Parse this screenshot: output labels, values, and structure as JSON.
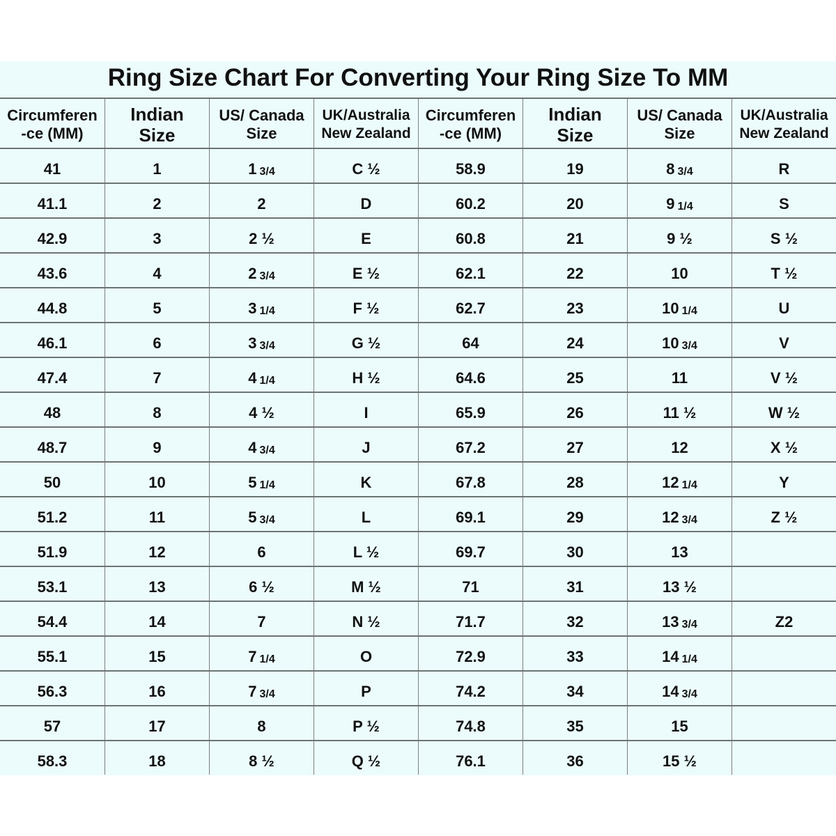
{
  "title": "Ring Size Chart For Converting Your Ring Size To MM",
  "headers": [
    [
      "Circumferen",
      "-ce   (MM)"
    ],
    [
      "Indian",
      "Size"
    ],
    [
      "US/ Canada",
      "Size"
    ],
    [
      "UK/Australia",
      "New Zealand"
    ],
    [
      "Circumferen",
      "-ce   (MM)"
    ],
    [
      "Indian",
      "Size"
    ],
    [
      "US/ Canada",
      "Size"
    ],
    [
      "UK/Australia",
      "New Zealand"
    ]
  ],
  "rows": [
    [
      "41",
      "1",
      "1 3/4",
      "C ½",
      "58.9",
      "19",
      "8 3/4",
      "R"
    ],
    [
      "41.1",
      "2",
      "2",
      "D",
      "60.2",
      "20",
      "9 1/4",
      "S"
    ],
    [
      "42.9",
      "3",
      "2 ½",
      "E",
      "60.8",
      "21",
      "9 ½",
      "S ½"
    ],
    [
      "43.6",
      "4",
      "2 3/4",
      "E ½",
      "62.1",
      "22",
      "10",
      "T ½"
    ],
    [
      "44.8",
      "5",
      "3 1/4",
      "F ½",
      "62.7",
      "23",
      "10 1/4",
      "U"
    ],
    [
      "46.1",
      "6",
      "3 3/4",
      "G ½",
      "64",
      "24",
      "10 3/4",
      "V"
    ],
    [
      "47.4",
      "7",
      "4 1/4",
      "H ½",
      "64.6",
      "25",
      "11",
      "V ½"
    ],
    [
      "48",
      "8",
      "4 ½",
      "I",
      "65.9",
      "26",
      "11 ½",
      "W ½"
    ],
    [
      "48.7",
      "9",
      "4 3/4",
      "J",
      "67.2",
      "27",
      "12",
      "X ½"
    ],
    [
      "50",
      "10",
      "5 1/4",
      "K",
      "67.8",
      "28",
      "12 1/4",
      "Y"
    ],
    [
      "51.2",
      "11",
      "5 3/4",
      "L",
      "69.1",
      "29",
      "12 3/4",
      "Z ½"
    ],
    [
      "51.9",
      "12",
      "6",
      "L ½",
      "69.7",
      "30",
      "13",
      ""
    ],
    [
      "53.1",
      "13",
      "6 ½",
      "M ½",
      "71",
      "31",
      "13 ½",
      ""
    ],
    [
      "54.4",
      "14",
      "7",
      "N ½",
      "71.7",
      "32",
      "13 3/4",
      "Z2"
    ],
    [
      "55.1",
      "15",
      "7 1/4",
      "O",
      "72.9",
      "33",
      "14 1/4",
      ""
    ],
    [
      "56.3",
      "16",
      "7 3/4",
      "P",
      "74.2",
      "34",
      "14 3/4",
      ""
    ],
    [
      "57",
      "17",
      "8",
      "P ½",
      "74.8",
      "35",
      "15",
      ""
    ],
    [
      "58.3",
      "18",
      "8 ½",
      "Q ½",
      "76.1",
      "36",
      "15 ½",
      ""
    ]
  ],
  "colors": {
    "background": "#ecfcfc",
    "grid": "#6c7373",
    "text": "#111111"
  }
}
